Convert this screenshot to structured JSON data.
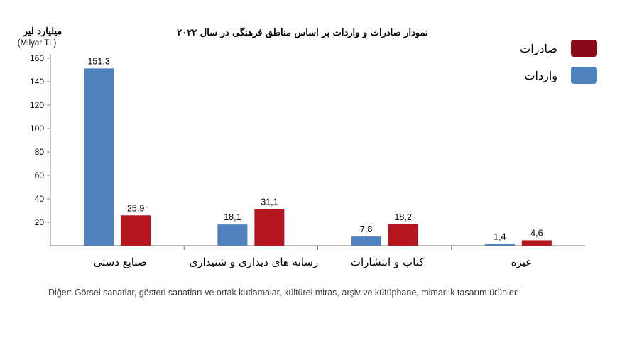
{
  "chart_data": {
    "type": "bar",
    "title": "نمودار صادرات و واردات بر اساس مناطق فرهنگی در سال ۲۰۲۲",
    "ylabel": "میلیارد لیر",
    "ylabel_sub": "(Milyar TL)",
    "ylim": [
      0,
      160
    ],
    "yticks": [
      20,
      40,
      60,
      80,
      100,
      120,
      140,
      160
    ],
    "grid": false,
    "legend_position": "top-right",
    "categories": [
      "صنایع دستی",
      "رسانه های دیداری و شنیداری",
      "کتاب و انتشارات",
      "غیره"
    ],
    "series": [
      {
        "name": "واردات",
        "color": "#4f81bd",
        "values": [
          151.3,
          18.1,
          7.8,
          1.4
        ],
        "labels": [
          "151,3",
          "18,1",
          "7,8",
          "1,4"
        ]
      },
      {
        "name": "صادرات",
        "color": "#b3161c",
        "values": [
          25.9,
          31.1,
          18.2,
          4.6
        ],
        "labels": [
          "25,9",
          "31,1",
          "18,2",
          "4,6"
        ]
      }
    ],
    "legend_order": [
      "صادرات",
      "واردات"
    ],
    "legend_colors": {
      "صادرات": "#8b0a1a",
      "واردات": "#4f81bd"
    }
  },
  "footnote": "Diğer: Görsel sanatlar, gösteri sanatları ve ortak kutlamalar, kültürel miras, arşiv ve kütüphane, mimarlık tasarım ürünleri"
}
